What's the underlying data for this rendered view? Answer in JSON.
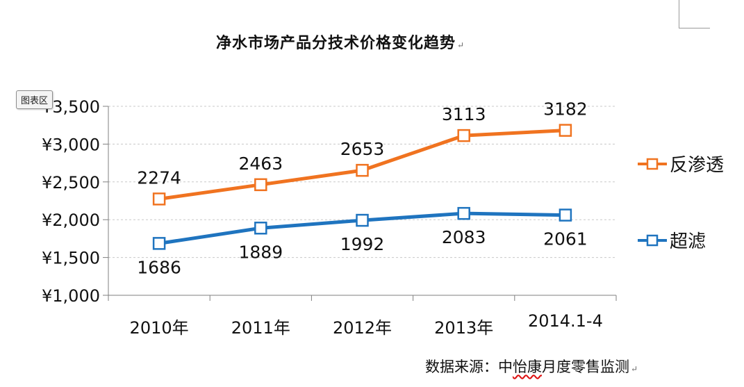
{
  "document": {
    "title": "净水市场产品分技术价格变化趋势",
    "paragraph_mark": "↵",
    "chart_area_tag": "图表区",
    "source_prefix": "数据来源：中",
    "source_brand": "怡康",
    "source_suffix": "月度零售监测"
  },
  "chart_data": {
    "type": "line",
    "title": "",
    "xlabel": "",
    "ylabel": "",
    "categories": [
      "2010年",
      "2011年",
      "2012年",
      "2013年",
      "2014.1-4"
    ],
    "ylim": [
      1000,
      3500
    ],
    "yticks": [
      1000,
      1500,
      2000,
      2500,
      3000,
      3500
    ],
    "ytick_labels": [
      "¥1,000",
      "¥1,500",
      "¥2,000",
      "¥2,500",
      "¥3,000",
      "¥3,500"
    ],
    "grid": "horizontal dashed",
    "legend_position": "right",
    "series": [
      {
        "name": "反渗透",
        "color": "#f07320",
        "values": [
          2274,
          2463,
          2653,
          3113,
          3182
        ],
        "label_position": "above"
      },
      {
        "name": "超滤",
        "color": "#1f74bf",
        "values": [
          1686,
          1889,
          1992,
          2083,
          2061
        ],
        "label_position": "below"
      }
    ]
  }
}
